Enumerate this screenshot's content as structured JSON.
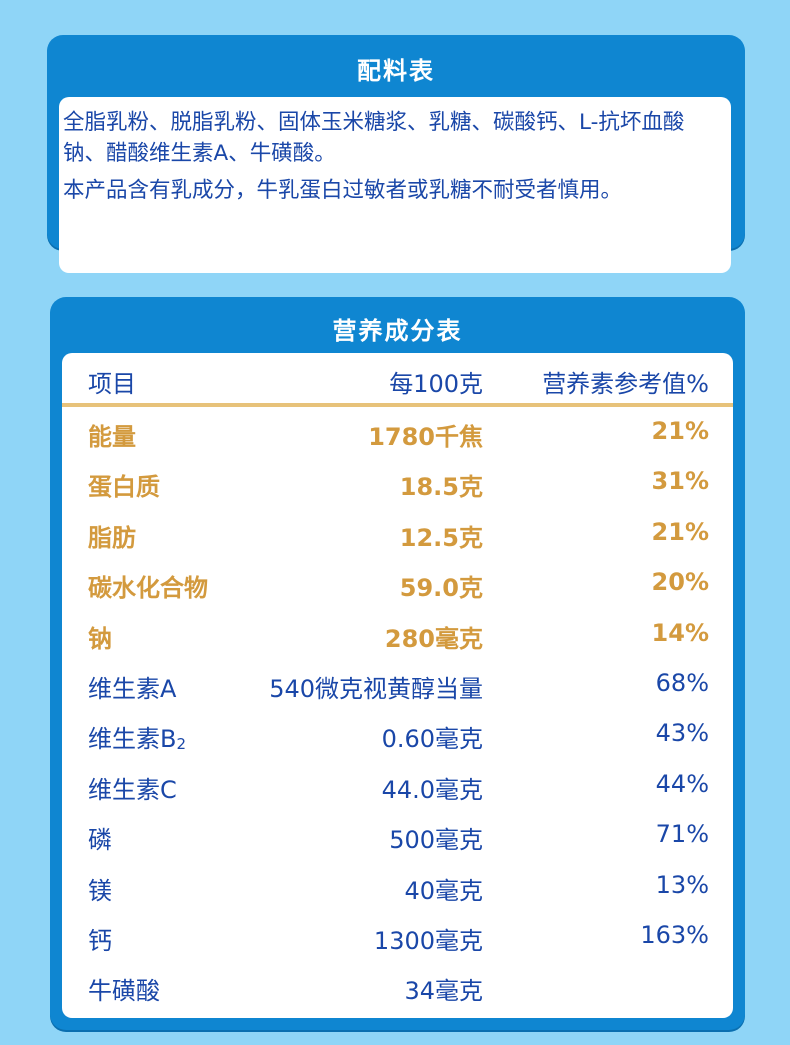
{
  "ingredients": {
    "title": "配料表",
    "lines": [
      "全脂乳粉、脱脂乳粉、固体玉米糖浆、乳糖、碳酸钙、L-抗坏血酸",
      "钠、醋酸维生素A、牛磺酸。",
      "本产品含有乳成分，牛乳蛋白过敏者或乳糖不耐受者慎用。"
    ]
  },
  "nutrition": {
    "title": "营养成分表",
    "headers": [
      "项目",
      "每100克",
      "营养素参考值%"
    ],
    "rows": [
      {
        "item": "能量",
        "amount": "1780千焦",
        "nrv": "21%",
        "highlight": true
      },
      {
        "item": "蛋白质",
        "amount": "18.5克",
        "nrv": "31%",
        "highlight": true
      },
      {
        "item": "脂肪",
        "amount": "12.5克",
        "nrv": "21%",
        "highlight": true
      },
      {
        "item": "碳水化合物",
        "amount": "59.0克",
        "nrv": "20%",
        "highlight": true
      },
      {
        "item": "钠",
        "amount": "280毫克",
        "nrv": "14%",
        "highlight": true
      },
      {
        "item": "维生素A",
        "amount": "540微克视黄醇当量",
        "nrv": "68%",
        "highlight": false
      },
      {
        "item": "维生素B",
        "item_sub": "2",
        "amount": "0.60毫克",
        "nrv": "43%",
        "highlight": false
      },
      {
        "item": "维生素C",
        "amount": "44.0毫克",
        "nrv": "44%",
        "highlight": false
      },
      {
        "item": "磷",
        "amount": "500毫克",
        "nrv": "71%",
        "highlight": false
      },
      {
        "item": "镁",
        "amount": "40毫克",
        "nrv": "13%",
        "highlight": false
      },
      {
        "item": "钙",
        "amount": "1300毫克",
        "nrv": "163%",
        "highlight": false
      },
      {
        "item": "牛磺酸",
        "amount": "34毫克",
        "nrv": "",
        "highlight": false
      }
    ]
  },
  "colors": {
    "background": "#8fd5f7",
    "card": "#0f86d1",
    "text_blue": "#1a47a8",
    "highlight_gold": "#d39a3e",
    "divider": "#e7c27a"
  }
}
